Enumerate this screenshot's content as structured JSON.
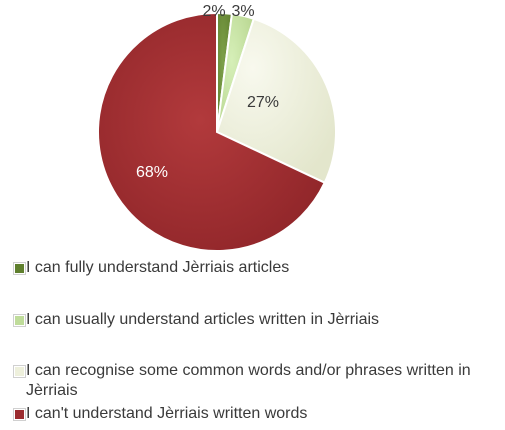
{
  "chart_data": {
    "type": "pie",
    "title": "",
    "legend_position": "bottom",
    "slices": [
      {
        "label": "I can fully understand Jèrriais articles",
        "value": 2,
        "display": "2%",
        "color": "#5f7f2d"
      },
      {
        "label": "I can usually understand articles written in Jèrriais",
        "value": 3,
        "display": "3%",
        "color": "#bfdc9a"
      },
      {
        "label": "I can recognise some common words and/or phrases written in Jèrriais",
        "value": 27,
        "display": "27%",
        "color": "#eef0dc"
      },
      {
        "label": "I can't understand Jèrriais written words",
        "value": 68,
        "display": "68%",
        "color": "#9b2b2f"
      }
    ]
  }
}
